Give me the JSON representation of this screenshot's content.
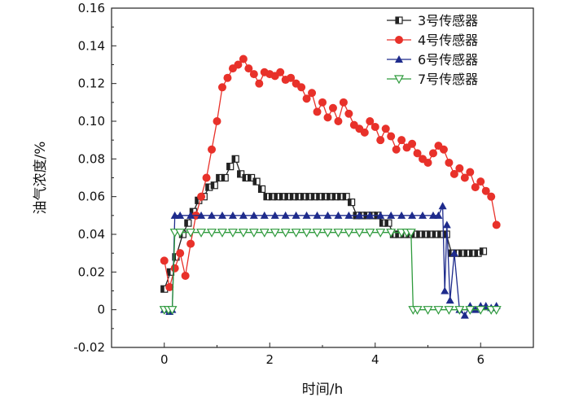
{
  "chart_data": {
    "type": "line",
    "title": "",
    "xlabel": "时间/h",
    "ylabel": "油气浓度/%",
    "xlim": [
      -1,
      7
    ],
    "ylim": [
      -0.02,
      0.16
    ],
    "xticks": [
      0,
      2,
      4,
      6
    ],
    "yticks": [
      -0.02,
      0,
      0.02,
      0.04,
      0.06,
      0.08,
      0.1,
      0.12,
      0.14,
      0.16
    ],
    "ytick_labels": [
      "-0.02",
      "0",
      "0.02",
      "0.04",
      "0.06",
      "0.08",
      "0.10",
      "0.12",
      "0.14",
      "0.16"
    ],
    "grid": false,
    "legend_position": "top-right",
    "series": [
      {
        "name": "3号传感器",
        "color": "#222222",
        "marker": "half-filled-square",
        "x": [
          0.0,
          0.12,
          0.22,
          0.35,
          0.45,
          0.55,
          0.65,
          0.75,
          0.85,
          0.95,
          1.05,
          1.15,
          1.25,
          1.35,
          1.45,
          1.55,
          1.65,
          1.75,
          1.85,
          1.95,
          2.05,
          2.15,
          2.25,
          2.35,
          2.45,
          2.55,
          2.65,
          2.75,
          2.85,
          2.95,
          3.05,
          3.15,
          3.25,
          3.35,
          3.45,
          3.55,
          3.65,
          3.75,
          3.85,
          3.95,
          4.05,
          4.15,
          4.25,
          4.35,
          4.45,
          4.55,
          4.65,
          4.75,
          4.85,
          4.95,
          5.05,
          5.15,
          5.25,
          5.35,
          5.45,
          5.55,
          5.65,
          5.75,
          5.85,
          5.95,
          6.05
        ],
        "y": [
          0.011,
          0.02,
          0.028,
          0.04,
          0.046,
          0.052,
          0.058,
          0.06,
          0.065,
          0.066,
          0.07,
          0.07,
          0.076,
          0.08,
          0.072,
          0.07,
          0.07,
          0.068,
          0.064,
          0.06,
          0.06,
          0.06,
          0.06,
          0.06,
          0.06,
          0.06,
          0.06,
          0.06,
          0.06,
          0.06,
          0.06,
          0.06,
          0.06,
          0.06,
          0.06,
          0.057,
          0.05,
          0.05,
          0.05,
          0.05,
          0.05,
          0.046,
          0.046,
          0.04,
          0.04,
          0.04,
          0.04,
          0.04,
          0.04,
          0.04,
          0.04,
          0.04,
          0.04,
          0.04,
          0.03,
          0.03,
          0.03,
          0.03,
          0.03,
          0.03,
          0.031
        ]
      },
      {
        "name": "4号传感器",
        "color": "#e8312a",
        "marker": "filled-circle",
        "x": [
          0.0,
          0.1,
          0.2,
          0.3,
          0.4,
          0.5,
          0.6,
          0.7,
          0.8,
          0.9,
          1.0,
          1.1,
          1.2,
          1.3,
          1.4,
          1.5,
          1.6,
          1.7,
          1.8,
          1.9,
          2.0,
          2.1,
          2.2,
          2.3,
          2.4,
          2.5,
          2.6,
          2.7,
          2.8,
          2.9,
          3.0,
          3.1,
          3.2,
          3.3,
          3.4,
          3.5,
          3.6,
          3.7,
          3.8,
          3.9,
          4.0,
          4.1,
          4.2,
          4.3,
          4.4,
          4.5,
          4.6,
          4.7,
          4.8,
          4.9,
          5.0,
          5.1,
          5.2,
          5.3,
          5.4,
          5.5,
          5.6,
          5.7,
          5.8,
          5.9,
          6.0,
          6.1,
          6.2,
          6.3
        ],
        "y": [
          0.026,
          0.012,
          0.022,
          0.03,
          0.018,
          0.035,
          0.05,
          0.06,
          0.07,
          0.085,
          0.1,
          0.118,
          0.123,
          0.128,
          0.13,
          0.133,
          0.128,
          0.125,
          0.12,
          0.126,
          0.125,
          0.124,
          0.126,
          0.122,
          0.123,
          0.12,
          0.118,
          0.112,
          0.115,
          0.105,
          0.11,
          0.102,
          0.107,
          0.1,
          0.11,
          0.104,
          0.098,
          0.096,
          0.094,
          0.1,
          0.097,
          0.09,
          0.096,
          0.092,
          0.085,
          0.09,
          0.086,
          0.088,
          0.083,
          0.08,
          0.078,
          0.083,
          0.087,
          0.085,
          0.078,
          0.072,
          0.075,
          0.07,
          0.073,
          0.065,
          0.068,
          0.063,
          0.06,
          0.045
        ]
      },
      {
        "name": "6号传感器",
        "color": "#1e2b8c",
        "marker": "filled-triangle",
        "x": [
          0.0,
          0.1,
          0.15,
          0.2,
          0.3,
          0.5,
          0.7,
          0.9,
          1.1,
          1.3,
          1.5,
          1.7,
          1.9,
          2.1,
          2.3,
          2.5,
          2.7,
          2.9,
          3.1,
          3.3,
          3.5,
          3.7,
          3.9,
          4.1,
          4.3,
          4.5,
          4.7,
          4.9,
          5.1,
          5.2,
          5.28,
          5.32,
          5.36,
          5.42,
          5.5,
          5.6,
          5.7,
          5.8,
          5.9,
          6.0,
          6.1,
          6.2,
          6.3
        ],
        "y": [
          0.0,
          -0.001,
          0.0,
          0.05,
          0.05,
          0.05,
          0.05,
          0.05,
          0.05,
          0.05,
          0.05,
          0.05,
          0.05,
          0.05,
          0.05,
          0.05,
          0.05,
          0.05,
          0.05,
          0.05,
          0.05,
          0.05,
          0.05,
          0.05,
          0.05,
          0.05,
          0.05,
          0.05,
          0.05,
          0.05,
          0.055,
          0.01,
          0.045,
          0.005,
          0.03,
          0.0,
          -0.003,
          0.002,
          0.0,
          0.002,
          0.002,
          0.001,
          0.002
        ]
      },
      {
        "name": "7号传感器",
        "color": "#2e9a3c",
        "marker": "hollow-triangle-down",
        "x": [
          0.0,
          0.08,
          0.15,
          0.2,
          0.3,
          0.5,
          0.7,
          0.9,
          1.1,
          1.3,
          1.5,
          1.7,
          1.9,
          2.1,
          2.3,
          2.5,
          2.7,
          2.9,
          3.1,
          3.3,
          3.5,
          3.7,
          3.9,
          4.1,
          4.3,
          4.5,
          4.6,
          4.68,
          4.72,
          4.8,
          5.0,
          5.2,
          5.4,
          5.6,
          5.8,
          6.0,
          6.2,
          6.3
        ],
        "y": [
          0.0,
          0.0,
          0.0,
          0.041,
          0.041,
          0.041,
          0.041,
          0.041,
          0.041,
          0.041,
          0.041,
          0.041,
          0.041,
          0.041,
          0.041,
          0.041,
          0.041,
          0.041,
          0.041,
          0.041,
          0.041,
          0.041,
          0.041,
          0.041,
          0.041,
          0.041,
          0.041,
          0.041,
          0.0,
          0.0,
          0.0,
          0.0,
          0.0,
          0.0,
          0.0,
          0.0,
          0.0,
          0.0
        ]
      }
    ]
  }
}
